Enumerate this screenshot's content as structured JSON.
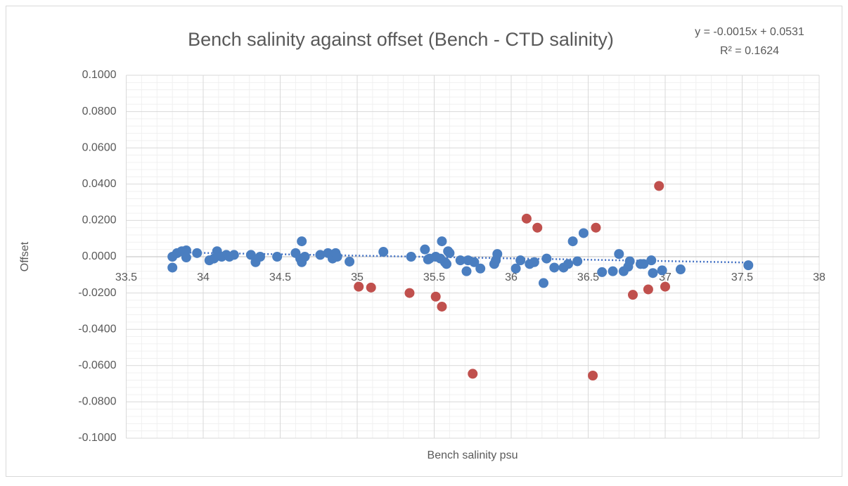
{
  "chart_data": {
    "type": "scatter",
    "title": "Bench salinity against offset (Bench - CTD salinity)",
    "x_label": "Bench salinity psu",
    "y_label": "Offset",
    "trendline": {
      "equation": "y = -0.0015x + 0.0531",
      "r2": "R² = 0.1624",
      "slope": -0.0015,
      "intercept": 0.0531,
      "color": "#4472c4"
    },
    "xlim": [
      33.5,
      38
    ],
    "xticks": [
      33.5,
      34,
      34.5,
      35,
      35.5,
      36,
      36.5,
      37,
      37.5,
      38
    ],
    "ylim": [
      -0.1,
      0.1
    ],
    "yticks": [
      {
        "value": -0.1,
        "label": "-0.1000"
      },
      {
        "value": -0.08,
        "label": "-0.0800"
      },
      {
        "value": -0.06,
        "label": "-0.0600"
      },
      {
        "value": -0.04,
        "label": "-0.0400"
      },
      {
        "value": -0.02,
        "label": "-0.0200"
      },
      {
        "value": 0,
        "label": "0.0000"
      },
      {
        "value": 0.02,
        "label": "0.0200"
      },
      {
        "value": 0.04,
        "label": "0.0400"
      },
      {
        "value": 0.06,
        "label": "0.0600"
      },
      {
        "value": 0.08,
        "label": "0.0800"
      },
      {
        "value": 0.1,
        "label": "0.1000"
      }
    ],
    "grid": true,
    "minor_grid": true,
    "series": [
      {
        "color": "#4a7ec0",
        "x": [
          33.8,
          33.8,
          33.83,
          33.86,
          33.89,
          33.89,
          33.96,
          34.04,
          34.07,
          34.09,
          34.12,
          34.15,
          34.17,
          34.2,
          34.31,
          34.34,
          34.37,
          34.48,
          34.6,
          34.63,
          34.64,
          34.64,
          34.66,
          34.76,
          34.81,
          34.84,
          34.86,
          34.87,
          34.95,
          35.17,
          35.35,
          35.44,
          35.46,
          35.47,
          35.51,
          35.54,
          35.55,
          35.57,
          35.58,
          35.59,
          35.6,
          35.67,
          35.71,
          35.72,
          35.76,
          35.8,
          35.89,
          35.9,
          35.91,
          36.03,
          36.06,
          36.12,
          36.15,
          36.21,
          36.23,
          36.28,
          36.34,
          36.37,
          36.4,
          36.43,
          36.47,
          36.59,
          36.66,
          36.7,
          36.73,
          36.76,
          36.77,
          36.84,
          36.86,
          36.91,
          36.92,
          36.98,
          37.1,
          37.54
        ],
        "values": [
          0.0,
          -0.006,
          0.002,
          0.003,
          0.0035,
          -0.0004,
          0.002,
          -0.002,
          -0.001,
          0.003,
          0.0,
          0.001,
          0.0,
          0.001,
          0.001,
          -0.003,
          0.0,
          0.0,
          0.002,
          -0.001,
          -0.003,
          0.0085,
          0.0,
          0.001,
          0.002,
          -0.001,
          0.002,
          0.0,
          -0.0027,
          0.0027,
          0.0,
          0.004,
          -0.0015,
          -0.001,
          0.0,
          -0.001,
          0.0085,
          -0.003,
          -0.004,
          0.003,
          0.002,
          -0.002,
          -0.008,
          -0.002,
          -0.003,
          -0.0065,
          -0.004,
          -0.002,
          0.0015,
          -0.0065,
          -0.002,
          -0.004,
          -0.003,
          -0.0145,
          -0.001,
          -0.006,
          -0.006,
          -0.004,
          0.0085,
          -0.0025,
          0.013,
          -0.0085,
          -0.008,
          0.0015,
          -0.008,
          -0.0055,
          -0.0025,
          -0.004,
          -0.004,
          -0.002,
          -0.009,
          -0.0075,
          -0.007,
          -0.0047
        ]
      },
      {
        "color": "#c0504d",
        "x": [
          35.01,
          35.09,
          35.34,
          35.51,
          35.55,
          35.75,
          36.1,
          36.17,
          36.53,
          36.55,
          36.79,
          36.89,
          36.96,
          37.0
        ],
        "values": [
          -0.0165,
          -0.017,
          -0.02,
          -0.022,
          -0.0275,
          -0.0645,
          0.021,
          0.016,
          -0.0655,
          0.016,
          -0.021,
          -0.018,
          0.039,
          -0.0165
        ]
      }
    ]
  }
}
